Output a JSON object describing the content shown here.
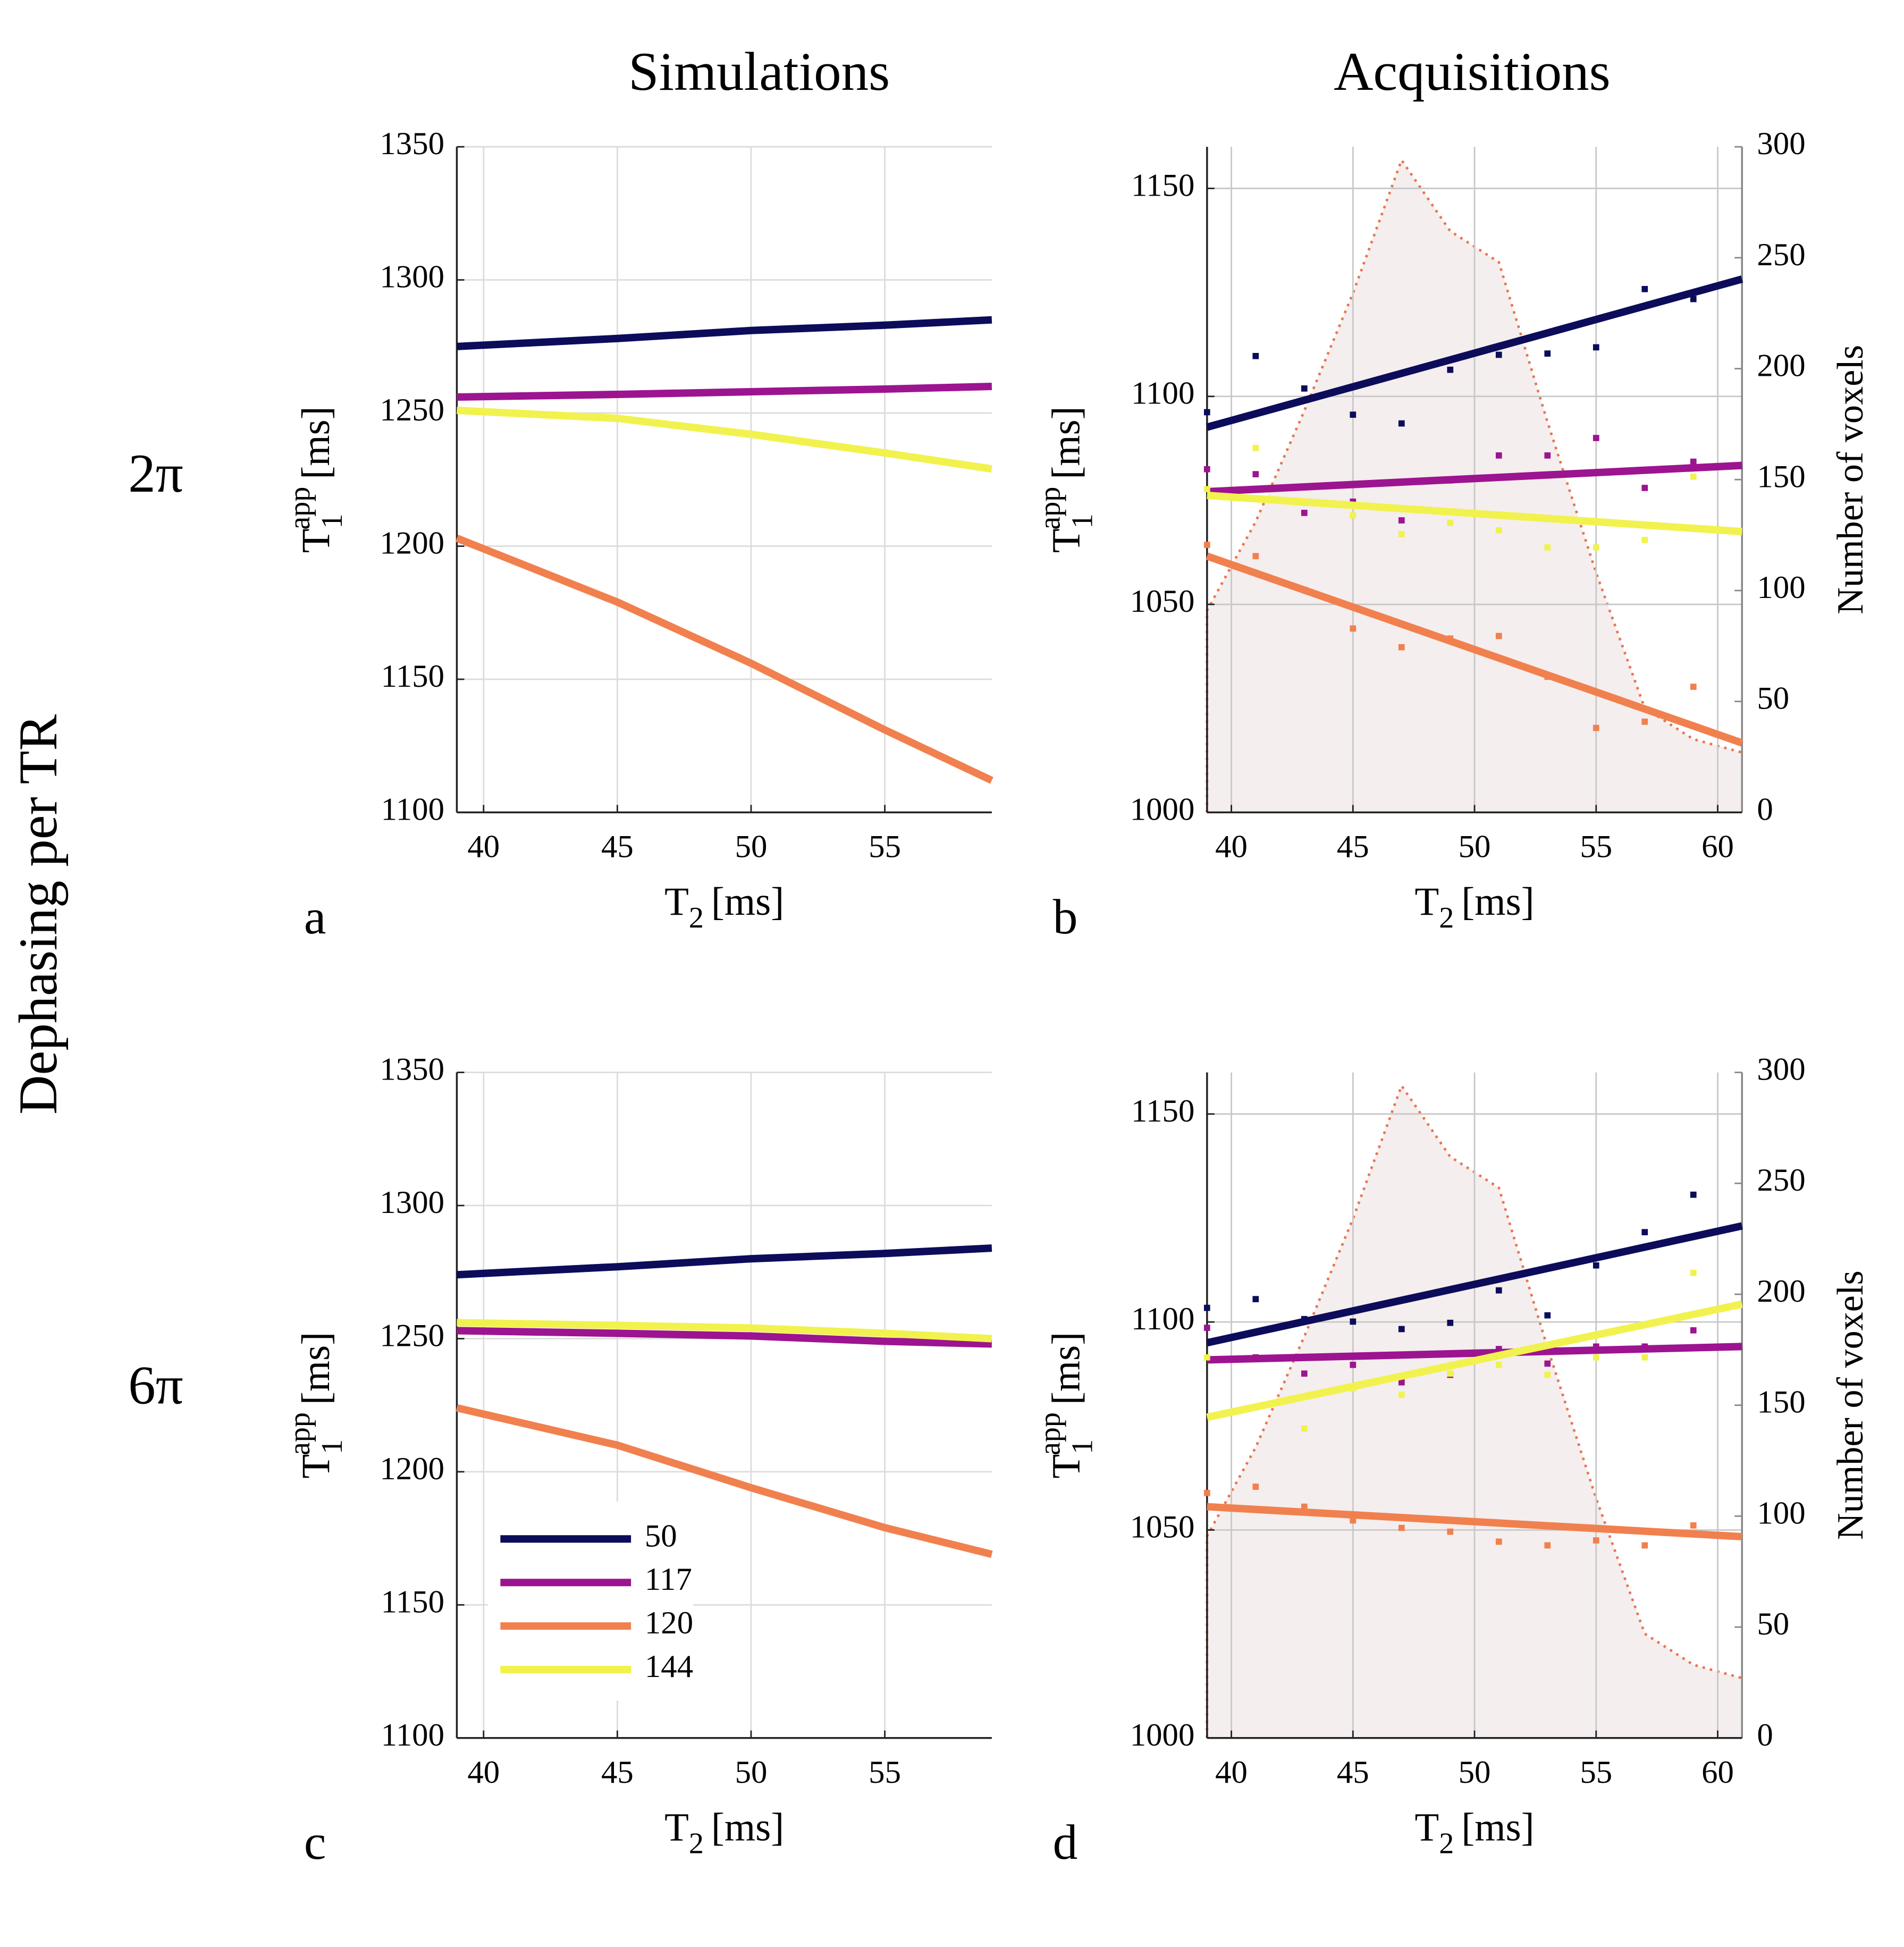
{
  "figure": {
    "column_titles": [
      "Simulations",
      "Acquisitions"
    ],
    "row_labels": [
      "2π",
      "6π"
    ],
    "row_axis_label": "Dephasing per TR"
  },
  "chart_data": [
    {
      "type": "line",
      "panel_label": "a",
      "x": [
        39,
        45,
        50,
        55,
        59
      ],
      "xlim": [
        39,
        59
      ],
      "xticks": [
        40,
        45,
        50,
        55
      ],
      "ylim": [
        1100,
        1350
      ],
      "yticks": [
        1100,
        1150,
        1200,
        1250,
        1300,
        1350
      ],
      "grid": true,
      "xlabel": {
        "symbol": "T",
        "subscript": "2",
        "unit": "[ms]"
      },
      "ylabel": {
        "symbol": "T",
        "subscript": "1",
        "superscript": "app",
        "unit": "[ms]"
      },
      "series": [
        {
          "name": "50",
          "color": "#0c0c5b",
          "values": [
            1275,
            1278,
            1281,
            1283,
            1285
          ]
        },
        {
          "name": "117",
          "color": "#9c1490",
          "values": [
            1256,
            1257,
            1258,
            1259,
            1260
          ]
        },
        {
          "name": "120",
          "color": "#f1804f",
          "values": [
            1203,
            1179,
            1156,
            1131,
            1112
          ]
        },
        {
          "name": "144",
          "color": "#f1f24e",
          "values": [
            1251,
            1248,
            1242,
            1235,
            1229
          ]
        }
      ]
    },
    {
      "type": "scatter",
      "panel_label": "b",
      "x": [
        39,
        41,
        43,
        45,
        47,
        49,
        51,
        53,
        55,
        57,
        59
      ],
      "fit_x": [
        39,
        61
      ],
      "xlim": [
        39,
        61
      ],
      "xticks": [
        40,
        45,
        50,
        55,
        60
      ],
      "ylim": [
        1000,
        1160
      ],
      "yticks": [
        1000,
        1050,
        1100,
        1150
      ],
      "y2lim": [
        0,
        300
      ],
      "y2ticks": [
        0,
        50,
        100,
        150,
        200,
        250,
        300
      ],
      "y2label": "Number of voxels",
      "grid": true,
      "xlabel": {
        "symbol": "T",
        "subscript": "2",
        "unit": "[ms]"
      },
      "ylabel": {
        "symbol": "T",
        "subscript": "1",
        "superscript": "app",
        "unit": "[ms]"
      },
      "series": [
        {
          "name": "50",
          "color": "#0c0c5b",
          "values": [
            1096.2,
            1109.7,
            1101.9,
            1095.6,
            1093.5,
            1106.4,
            1110,
            1110.3,
            1111.8,
            1125.8,
            1123.4
          ],
          "fit_values": [
            1092.6,
            1128.2
          ]
        },
        {
          "name": "117",
          "color": "#9c1490",
          "values": [
            1082.5,
            1081.3,
            1072,
            1074.7,
            1070.2,
            1079.8,
            1085.8,
            1085.8,
            1090,
            1078,
            1084.3
          ],
          "fit_values": [
            1077.1,
            1083.4
          ]
        },
        {
          "name": "120",
          "color": "#f1804f",
          "values": [
            1064.3,
            1061.6,
            1053.5,
            1044.2,
            1039.7,
            1041.8,
            1042.4,
            1032.6,
            1020.3,
            1021.8,
            1030.2
          ],
          "fit_values": [
            1061.6,
            1016.7
          ]
        },
        {
          "name": "144",
          "color": "#f1f24e",
          "values": [
            1077.7,
            1087.6,
            1074.4,
            1071.4,
            1066.9,
            1069.6,
            1067.8,
            1063.7,
            1063.7,
            1065.5,
            1080.7
          ],
          "fit_values": [
            1076.2,
            1067.5
          ]
        }
      ],
      "histogram": {
        "axis": "y2",
        "x": [
          39,
          41,
          43,
          45,
          47,
          49,
          51,
          53,
          55,
          57,
          59,
          61
        ],
        "values": [
          91,
          131,
          181,
          234,
          294,
          262,
          248,
          176,
          108,
          47,
          33,
          27
        ],
        "color": "#f4eeee",
        "edge_color": "#e8744f"
      }
    },
    {
      "type": "line",
      "panel_label": "c",
      "x": [
        39,
        45,
        50,
        55,
        59
      ],
      "xlim": [
        39,
        59
      ],
      "xticks": [
        40,
        45,
        50,
        55
      ],
      "ylim": [
        1100,
        1350
      ],
      "yticks": [
        1100,
        1150,
        1200,
        1250,
        1300,
        1350
      ],
      "grid": true,
      "legend": "lower left",
      "xlabel": {
        "symbol": "T",
        "subscript": "2",
        "unit": "[ms]"
      },
      "ylabel": {
        "symbol": "T",
        "subscript": "1",
        "superscript": "app",
        "unit": "[ms]"
      },
      "series": [
        {
          "name": "50",
          "color": "#0c0c5b",
          "values": [
            1274,
            1277,
            1280,
            1282,
            1284
          ]
        },
        {
          "name": "117",
          "color": "#9c1490",
          "values": [
            1253,
            1252,
            1251,
            1249,
            1248
          ]
        },
        {
          "name": "120",
          "color": "#f1804f",
          "values": [
            1224,
            1210,
            1194,
            1179,
            1169
          ]
        },
        {
          "name": "144",
          "color": "#f1f24e",
          "values": [
            1256,
            1255,
            1254,
            1252,
            1250
          ]
        }
      ]
    },
    {
      "type": "scatter",
      "panel_label": "d",
      "x": [
        39,
        41,
        43,
        45,
        47,
        49,
        51,
        53,
        55,
        57,
        59
      ],
      "fit_x": [
        39,
        61
      ],
      "xlim": [
        39,
        61
      ],
      "xticks": [
        40,
        45,
        50,
        55,
        60
      ],
      "ylim": [
        1000,
        1160
      ],
      "yticks": [
        1000,
        1050,
        1100,
        1150
      ],
      "y2lim": [
        0,
        300
      ],
      "y2ticks": [
        0,
        50,
        100,
        150,
        200,
        250,
        300
      ],
      "y2label": "Number of voxels",
      "grid": true,
      "xlabel": {
        "symbol": "T",
        "subscript": "2",
        "unit": "[ms]"
      },
      "ylabel": {
        "symbol": "T",
        "subscript": "1",
        "superscript": "app",
        "unit": "[ms]"
      },
      "series": [
        {
          "name": "50",
          "color": "#0c0c5b",
          "values": [
            1103.4,
            1105.5,
            1100.7,
            1100.1,
            1098.3,
            1099.8,
            1107.6,
            1101.6,
            1113.6,
            1121.6,
            1130.6
          ],
          "fit_values": [
            1095,
            1123.1
          ]
        },
        {
          "name": "117",
          "color": "#9c1490",
          "values": [
            1098.6,
            1091.5,
            1087.6,
            1089.7,
            1085.5,
            1087.3,
            1093.5,
            1090,
            1094.1,
            1094.1,
            1098
          ],
          "fit_values": [
            1090.9,
            1094.1
          ]
        },
        {
          "name": "120",
          "color": "#f1804f",
          "values": [
            1058.9,
            1060.4,
            1055.6,
            1052.3,
            1050.5,
            1049.6,
            1047.2,
            1046.3,
            1047.5,
            1046.3,
            1051.1
          ],
          "fit_values": [
            1055.6,
            1048.4
          ]
        },
        {
          "name": "144",
          "color": "#f1f24e",
          "values": [
            1091.5,
            1079.5,
            1074.4,
            1084,
            1082.5,
            1087.6,
            1089.7,
            1087.3,
            1091.5,
            1091.5,
            1111.8
          ],
          "fit_values": [
            1077.1,
            1104.3
          ]
        }
      ],
      "histogram": {
        "axis": "y2",
        "x": [
          39,
          41,
          43,
          45,
          47,
          49,
          51,
          53,
          55,
          57,
          59,
          61
        ],
        "values": [
          91,
          131,
          181,
          234,
          294,
          262,
          248,
          176,
          108,
          47,
          33,
          27
        ],
        "color": "#f4eeee",
        "edge_color": "#e8744f"
      }
    }
  ]
}
